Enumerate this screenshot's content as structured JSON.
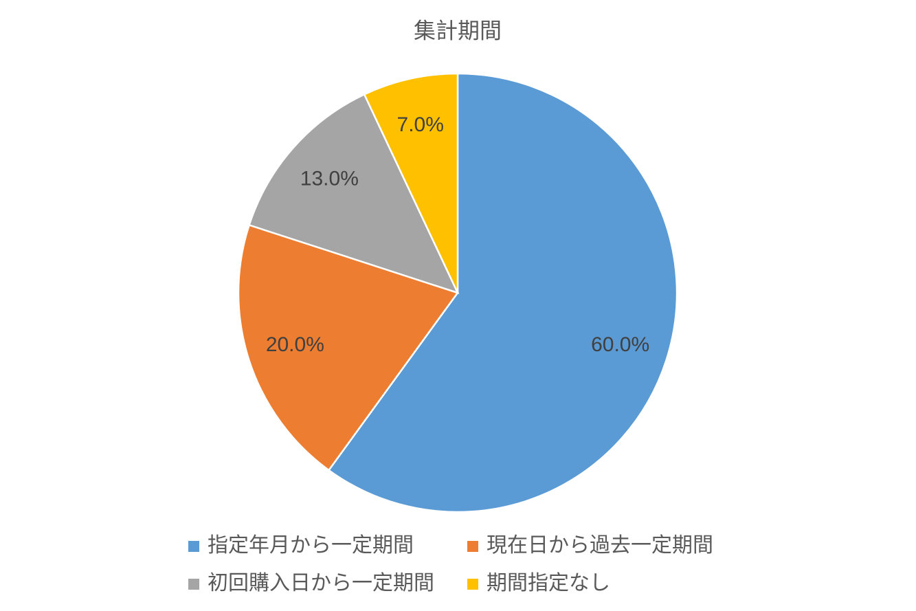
{
  "chart_data": {
    "type": "pie",
    "title": "集計期間",
    "categories": [
      "指定年月から一定期間",
      "現在日から過去一定期間",
      "初回購入日から一定期間",
      "期間指定なし"
    ],
    "values": [
      60,
      20,
      13,
      7
    ],
    "value_labels": [
      "60.0%",
      "20.0%",
      "13.0%",
      "7.0%"
    ],
    "colors": [
      "#5b9bd5",
      "#ed7d31",
      "#a5a5a5",
      "#ffc000"
    ],
    "legend": "bottom"
  }
}
